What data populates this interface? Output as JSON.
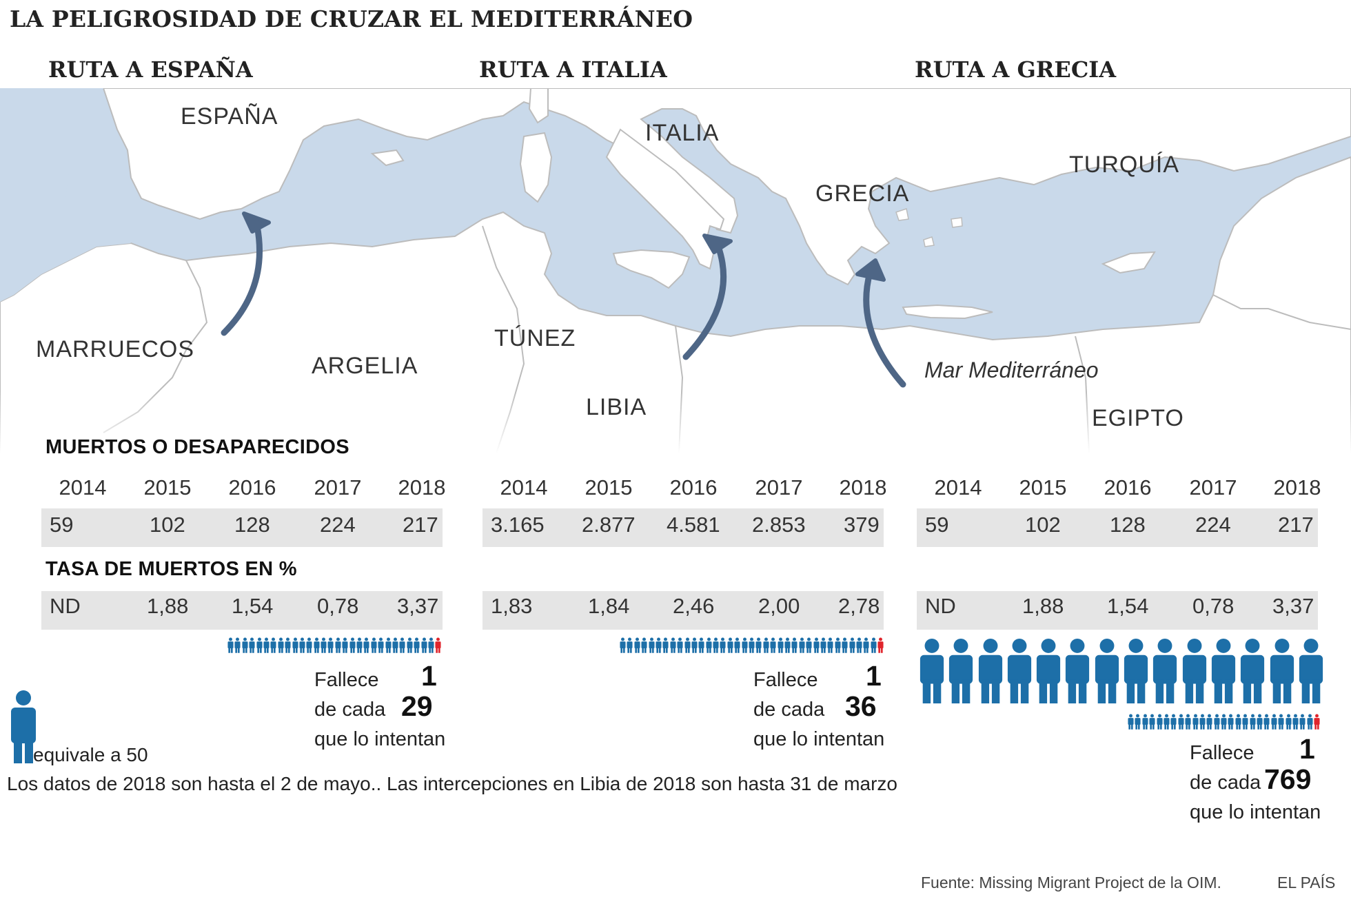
{
  "title": "LA PELIGROSIDAD DE CRUZAR EL MEDITERRÁNEO",
  "routes": [
    {
      "title": "RUTA A ESPAÑA",
      "rate_one": "1",
      "rate_of": "29"
    },
    {
      "title": "RUTA A ITALIA",
      "rate_one": "1",
      "rate_of": "36"
    },
    {
      "title": "RUTA A GRECIA",
      "rate_one": "1",
      "rate_of": "769"
    }
  ],
  "map_labels": {
    "espana": "ESPAÑA",
    "italia": "ITALIA",
    "grecia": "GRECIA",
    "turquia": "TURQUÍA",
    "marruecos": "MARRUECOS",
    "argelia": "ARGELIA",
    "tunez": "TÚNEZ",
    "libia": "LIBIA",
    "egipto": "EGIPTO",
    "mar": "Mar Mediterráneo"
  },
  "deaths_label": "MUERTOS O DESAPARECIDOS",
  "rate_label": "TASA DE MUERTOS EN %",
  "fallece_text": {
    "line1": "Fallece",
    "line2": "de cada",
    "line3": "que lo intentan"
  },
  "legend_text": "equivale a 50",
  "footnote": "Los datos de 2018 son hasta el 2 de mayo.. Las intercepciones en Libia de 2018 son hasta 31 de marzo",
  "source": "Fuente: Missing Migrant Project de la OIM.",
  "publisher": "EL PAÍS",
  "colors": {
    "sea": "#c9d9ea",
    "land": "#ffffff",
    "border": "#bcbcbc",
    "arrow": "#4e6686",
    "person": "#1d6fa8",
    "death": "#e0252c",
    "band": "#e5e5e5"
  },
  "chart_data": {
    "type": "table",
    "years": [
      "2014",
      "2015",
      "2016",
      "2017",
      "2018"
    ],
    "routes": [
      {
        "name": "RUTA A ESPAÑA",
        "deaths": [
          "59",
          "102",
          "128",
          "224",
          "217"
        ],
        "death_rate_pct": [
          "ND",
          "1,88",
          "1,54",
          "0,78",
          "3,37"
        ],
        "one_dies_of": 29,
        "icons_small": 30,
        "icons_large": 0
      },
      {
        "name": "RUTA A ITALIA",
        "deaths": [
          "3.165",
          "2.877",
          "4.581",
          "2.853",
          "379"
        ],
        "death_rate_pct": [
          "1,83",
          "1,84",
          "2,46",
          "2,00",
          "2,78"
        ],
        "one_dies_of": 36,
        "icons_small": 37,
        "icons_large": 0
      },
      {
        "name": "RUTA A GRECIA",
        "deaths": [
          "59",
          "102",
          "128",
          "224",
          "217"
        ],
        "death_rate_pct": [
          "ND",
          "1,88",
          "1,54",
          "0,78",
          "3,37"
        ],
        "one_dies_of": 769,
        "icons_small": 27,
        "icons_large": 14
      }
    ]
  }
}
